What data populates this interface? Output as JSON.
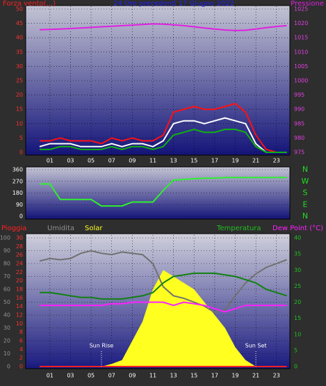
{
  "chart_data": [
    {
      "type": "line",
      "title": "24 Ore precedenti 17 Giugno 2022",
      "ylabel": "Forza vento(...)",
      "y2label": "Pressione",
      "x": [
        0,
        1,
        2,
        3,
        4,
        5,
        6,
        7,
        8,
        9,
        10,
        11,
        12,
        13,
        14,
        15,
        16,
        17,
        18,
        19,
        20,
        21,
        22,
        23,
        24
      ],
      "xlim": [
        -1.35,
        24.3
      ],
      "xticks": [
        {
          "value": 1,
          "label": "01"
        },
        {
          "value": 3,
          "label": "03"
        },
        {
          "value": 5,
          "label": "05"
        },
        {
          "value": 7,
          "label": "07"
        },
        {
          "value": 9,
          "label": "09"
        },
        {
          "value": 11,
          "label": "11"
        },
        {
          "value": 13,
          "label": "13"
        },
        {
          "value": 15,
          "label": "15"
        },
        {
          "value": 17,
          "label": "17"
        },
        {
          "value": 19,
          "label": "19"
        },
        {
          "value": 21,
          "label": "21"
        },
        {
          "value": 23,
          "label": "23"
        }
      ],
      "ylim": [
        0,
        50
      ],
      "yticks": [
        0,
        5,
        10,
        15,
        20,
        25,
        30,
        35,
        40,
        45,
        50
      ],
      "ytick_color": "#ff3030",
      "y2lim": [
        975,
        1025
      ],
      "y2ticks": [
        975,
        980,
        985,
        990,
        995,
        1000,
        1005,
        1010,
        1015,
        1020,
        1025
      ],
      "y2tick_color": "#e040e0",
      "grid": true,
      "series": [
        {
          "color": "#ff1010",
          "values": [
            4,
            4,
            5,
            4,
            4,
            4,
            3,
            5,
            4,
            5,
            4,
            4,
            6,
            14,
            15,
            16,
            15,
            15,
            16,
            17,
            14,
            6,
            1,
            0,
            0
          ]
        },
        {
          "color": "#ffffff",
          "values": [
            2,
            3,
            3,
            3,
            2,
            2,
            2,
            3,
            2,
            3,
            3,
            2,
            4,
            10,
            11,
            11,
            10,
            11,
            12,
            11,
            10,
            3,
            0,
            0,
            0
          ]
        },
        {
          "color": "#10b010",
          "values": [
            1,
            1,
            2,
            2,
            1,
            1,
            1,
            2,
            1,
            2,
            2,
            1,
            2,
            6,
            7,
            8,
            7,
            7,
            8,
            8,
            7,
            2,
            0,
            0,
            0
          ]
        },
        {
          "color": "#e020e0",
          "axis": "y2",
          "values": [
            1017.8,
            1017.9,
            1018,
            1018.2,
            1018.4,
            1018.6,
            1018.8,
            1019,
            1019.2,
            1019.4,
            1019.6,
            1019.8,
            1019.7,
            1019.5,
            1019.2,
            1018.8,
            1018.4,
            1018,
            1017.7,
            1017.5,
            1017.6,
            1018,
            1018.5,
            1018.9,
            1019.2
          ]
        }
      ]
    },
    {
      "type": "line",
      "x": [
        0,
        1,
        2,
        3,
        4,
        5,
        6,
        7,
        8,
        9,
        10,
        11,
        12,
        13,
        14,
        15,
        16,
        17,
        18,
        19,
        20,
        21,
        22,
        23,
        24
      ],
      "xlim": [
        -1.35,
        24.3
      ],
      "ylim": [
        0,
        360
      ],
      "yticks": [
        0,
        90,
        180,
        270,
        360
      ],
      "ytick_color": "#ffffff",
      "y2lim": [
        0,
        360
      ],
      "y2ticks": [
        {
          "value": 0,
          "label": "N"
        },
        {
          "value": 90,
          "label": "E"
        },
        {
          "value": 180,
          "label": "S"
        },
        {
          "value": 270,
          "label": "W"
        },
        {
          "value": 360,
          "label": "N"
        }
      ],
      "y2tick_color": "#20e020",
      "grid": true,
      "series": [
        {
          "color": "#30f030",
          "values": [
            250,
            250,
            130,
            130,
            130,
            130,
            80,
            80,
            80,
            110,
            110,
            110,
            200,
            280,
            285,
            290,
            295,
            295,
            300,
            300,
            300,
            300,
            300,
            300,
            300
          ]
        }
      ]
    },
    {
      "type": "line",
      "x": [
        0,
        1,
        2,
        3,
        4,
        5,
        6,
        7,
        8,
        9,
        10,
        11,
        12,
        13,
        14,
        15,
        16,
        17,
        18,
        19,
        20,
        21,
        22,
        23,
        24
      ],
      "xlim": [
        -1.35,
        24.3
      ],
      "xticks": [
        {
          "value": 1,
          "label": "01"
        },
        {
          "value": 3,
          "label": "03"
        },
        {
          "value": 5,
          "label": "05"
        },
        {
          "value": 7,
          "label": "07"
        },
        {
          "value": 9,
          "label": "09"
        },
        {
          "value": 11,
          "label": "11"
        },
        {
          "value": 13,
          "label": "13"
        },
        {
          "value": 15,
          "label": "15"
        },
        {
          "value": 17,
          "label": "17"
        },
        {
          "value": 19,
          "label": "19"
        },
        {
          "value": 21,
          "label": "21"
        },
        {
          "value": 23,
          "label": "23"
        }
      ],
      "ylim": [
        0,
        100
      ],
      "yticks": [
        0,
        10,
        20,
        30,
        40,
        50,
        60,
        70,
        80,
        90,
        100
      ],
      "ytick_color": "#909090",
      "y3lim": [
        0,
        30
      ],
      "y3ticks": [
        0,
        2,
        4,
        6,
        8,
        10,
        12,
        14,
        16,
        18,
        20,
        22,
        24,
        26,
        28,
        30
      ],
      "y3tick_color": "#ff3030",
      "y2lim": [
        0,
        40
      ],
      "y2ticks": [
        0,
        5,
        10,
        15,
        20,
        25,
        30,
        35,
        40
      ],
      "y2tick_color": "#20c020",
      "grid": true,
      "annotations": [
        {
          "text": "Sun Rise",
          "x": 6
        },
        {
          "text": "Sun Set",
          "x": 21
        }
      ],
      "series": [
        {
          "name": "Solar",
          "color": "#ffff20",
          "fill": true,
          "values": [
            0,
            0,
            0,
            0,
            0,
            0,
            0,
            2,
            5,
            20,
            35,
            60,
            75,
            70,
            65,
            60,
            50,
            40,
            30,
            15,
            5,
            0,
            0,
            0,
            0
          ]
        },
        {
          "name": "Umidita",
          "color": "#707070",
          "values": [
            82,
            84,
            83,
            84,
            88,
            90,
            88,
            87,
            89,
            88,
            87,
            80,
            62,
            55,
            53,
            50,
            47,
            42,
            44,
            55,
            65,
            72,
            77,
            80,
            83
          ]
        },
        {
          "name": "Temperatura",
          "color": "#108010",
          "axis": "y2",
          "values": [
            23,
            23,
            22.5,
            22,
            21.5,
            21.5,
            21,
            21,
            21,
            21.5,
            22,
            23,
            26,
            28,
            28.5,
            29,
            29,
            29,
            28.5,
            28,
            27,
            26,
            24,
            23,
            22
          ]
        },
        {
          "name": "Dew Point (°C)",
          "color": "#ff20ff",
          "axis": "y2",
          "values": [
            19,
            19,
            19,
            19,
            19,
            19,
            19,
            19.5,
            19.5,
            20,
            20,
            20,
            20,
            19,
            20,
            19.5,
            19,
            18,
            17,
            18,
            19,
            19,
            19,
            19,
            19
          ]
        },
        {
          "name": "Pioggia",
          "color": "#ff2020",
          "axis": "y3",
          "values": [
            0,
            0,
            0,
            0,
            0,
            0,
            0,
            0,
            0,
            0,
            0,
            0,
            0,
            0,
            0,
            0,
            0,
            0,
            0,
            0,
            0,
            0,
            0,
            0,
            0
          ]
        }
      ]
    }
  ]
}
